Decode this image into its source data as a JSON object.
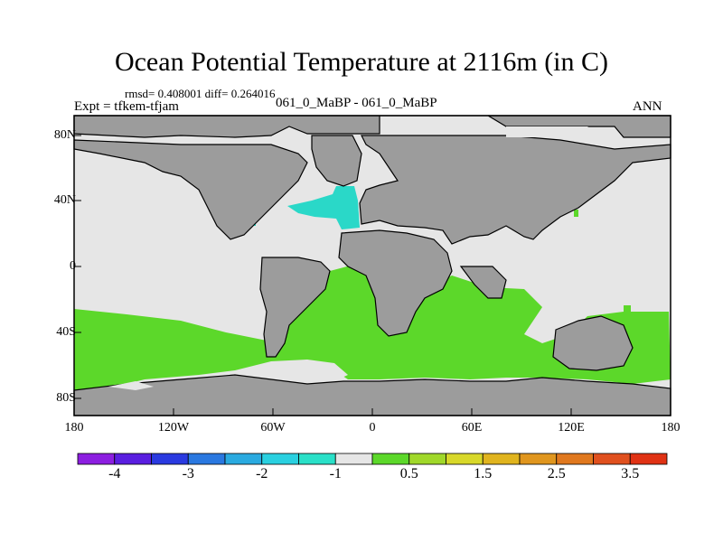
{
  "title": "Ocean Potential Temperature at 2116m (in C)",
  "stats": "rmsd= 0.408001 diff= 0.264016",
  "expt": "Expt = tfkem-tfjam",
  "cases": "061_0_MaBP - 061_0_MaBP",
  "season": "ANN",
  "colors": {
    "land": "#9c9c9c",
    "neutral": "#e6e6e6",
    "positive": "#5cd82a",
    "negative": "#2ad8c8"
  },
  "axes": {
    "x_ticks": [
      "180",
      "120W",
      "60W",
      "0",
      "60E",
      "120E",
      "180"
    ],
    "y_ticks": [
      "80N",
      "40N",
      "0",
      "40S",
      "80S"
    ]
  },
  "colorbar": {
    "colors": [
      "#8c1ee0",
      "#5a1ee0",
      "#2a3ae0",
      "#2a78e0",
      "#2aaae0",
      "#2ad0e0",
      "#2ae0c8",
      "#e6e6e6",
      "#5cd82a",
      "#a0d82a",
      "#d8d82a",
      "#e0b41e",
      "#e0961e",
      "#e0781e",
      "#e0501e",
      "#e03214"
    ],
    "labels": [
      "-4",
      "-3",
      "-2",
      "-1",
      "0.5",
      "1.5",
      "2.5",
      "3.5"
    ]
  }
}
